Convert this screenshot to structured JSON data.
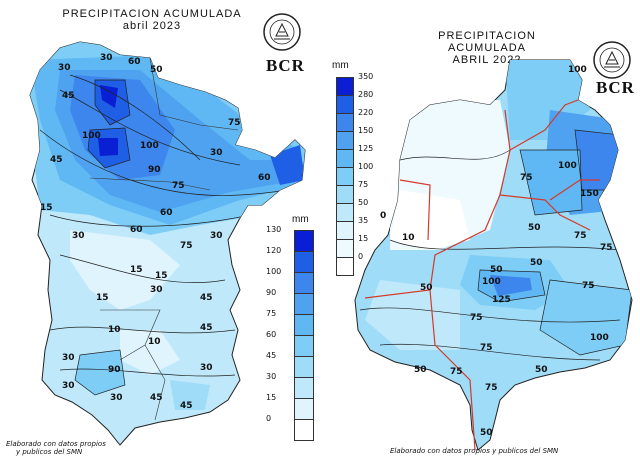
{
  "left_map": {
    "title_line1": "PRECIPITACION ACUMULADA",
    "title_line2": "abril 2023",
    "unit": "mm",
    "legend": {
      "labels": [
        "130",
        "120",
        "100",
        "90",
        "75",
        "60",
        "45",
        "30",
        "15",
        "0"
      ],
      "colors": [
        "#0a1fd4",
        "#1e5fe6",
        "#3d86ee",
        "#4ea2f0",
        "#5fb8f3",
        "#7dcdf6",
        "#9fdcf8",
        "#bfe9fb",
        "#dff4fd",
        "#ffffff"
      ]
    },
    "contour_labels": [
      "60",
      "30",
      "50",
      "30",
      "45",
      "75",
      "100",
      "90",
      "75",
      "60",
      "30",
      "100",
      "45",
      "15",
      "30",
      "15",
      "15",
      "15",
      "30",
      "10",
      "45",
      "10",
      "45",
      "90",
      "30",
      "30",
      "45",
      "30",
      "60",
      "75",
      "60",
      "30",
      "45",
      "30"
    ],
    "footnote_line1": "Elaborado con datos propios",
    "footnote_line2": "y publicos del SMN",
    "brand": "BCR",
    "seal": "seal-icon"
  },
  "right_map": {
    "title_line1": "PRECIPITACION ACUMULADA",
    "title_line2": "ABRIL 2022",
    "unit": "mm",
    "legend": {
      "labels": [
        "350",
        "280",
        "220",
        "150",
        "125",
        "100",
        "75",
        "50",
        "35",
        "15",
        "0"
      ],
      "colors": [
        "#0a1fd4",
        "#1e5fe6",
        "#3d86ee",
        "#4ea2f0",
        "#5fb8f3",
        "#7dcdf6",
        "#9fdcf8",
        "#bfe9fb",
        "#dff4fd",
        "#eefafe",
        "#ffffff"
      ]
    },
    "contour_labels": [
      "100",
      "75",
      "150",
      "100",
      "75",
      "50",
      "10",
      "0",
      "50",
      "50",
      "100",
      "125",
      "75",
      "50",
      "75",
      "75",
      "100",
      "75",
      "50",
      "75",
      "50",
      "75",
      "50"
    ],
    "footnote": "Elaborado con datos propios y publicos del SMN",
    "brand": "BCR",
    "seal": "seal-icon"
  },
  "colors": {
    "province_border": "#d23a2a",
    "contour_line": "#222222"
  }
}
